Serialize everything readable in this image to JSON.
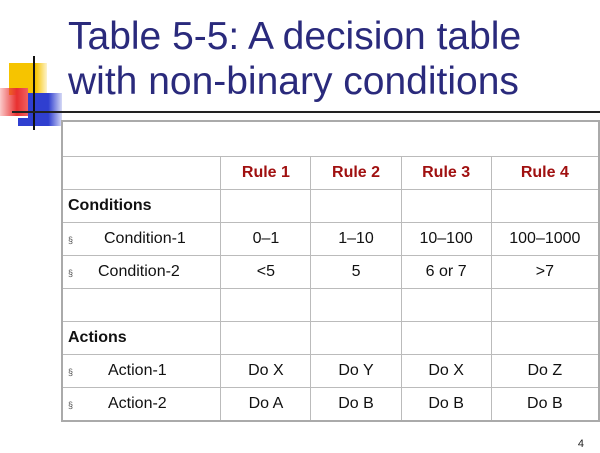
{
  "title": [
    "Table 5-5: A decision table",
    "with non-binary conditions"
  ],
  "bullet": "§",
  "rules": [
    "Rule 1",
    "Rule 2",
    "Rule 3",
    "Rule 4"
  ],
  "conditions_label": "Conditions",
  "conditions": [
    {
      "label": "Condition-1",
      "values": [
        "0–1",
        "1–10",
        "10–100",
        "100–1000"
      ]
    },
    {
      "label": "Condition-2",
      "values": [
        "<5",
        "5",
        "6 or 7",
        ">7"
      ]
    }
  ],
  "actions_label": "Actions",
  "actions": [
    {
      "label": "Action-1",
      "values": [
        "Do X",
        "Do Y",
        "Do X",
        "Do Z"
      ]
    },
    {
      "label": "Action-2",
      "values": [
        "Do A",
        "Do B",
        "Do B",
        "Do B"
      ]
    }
  ],
  "slide_number": "4",
  "colors": {
    "title": "#2a2a7c",
    "rule_header": "#a01010"
  }
}
